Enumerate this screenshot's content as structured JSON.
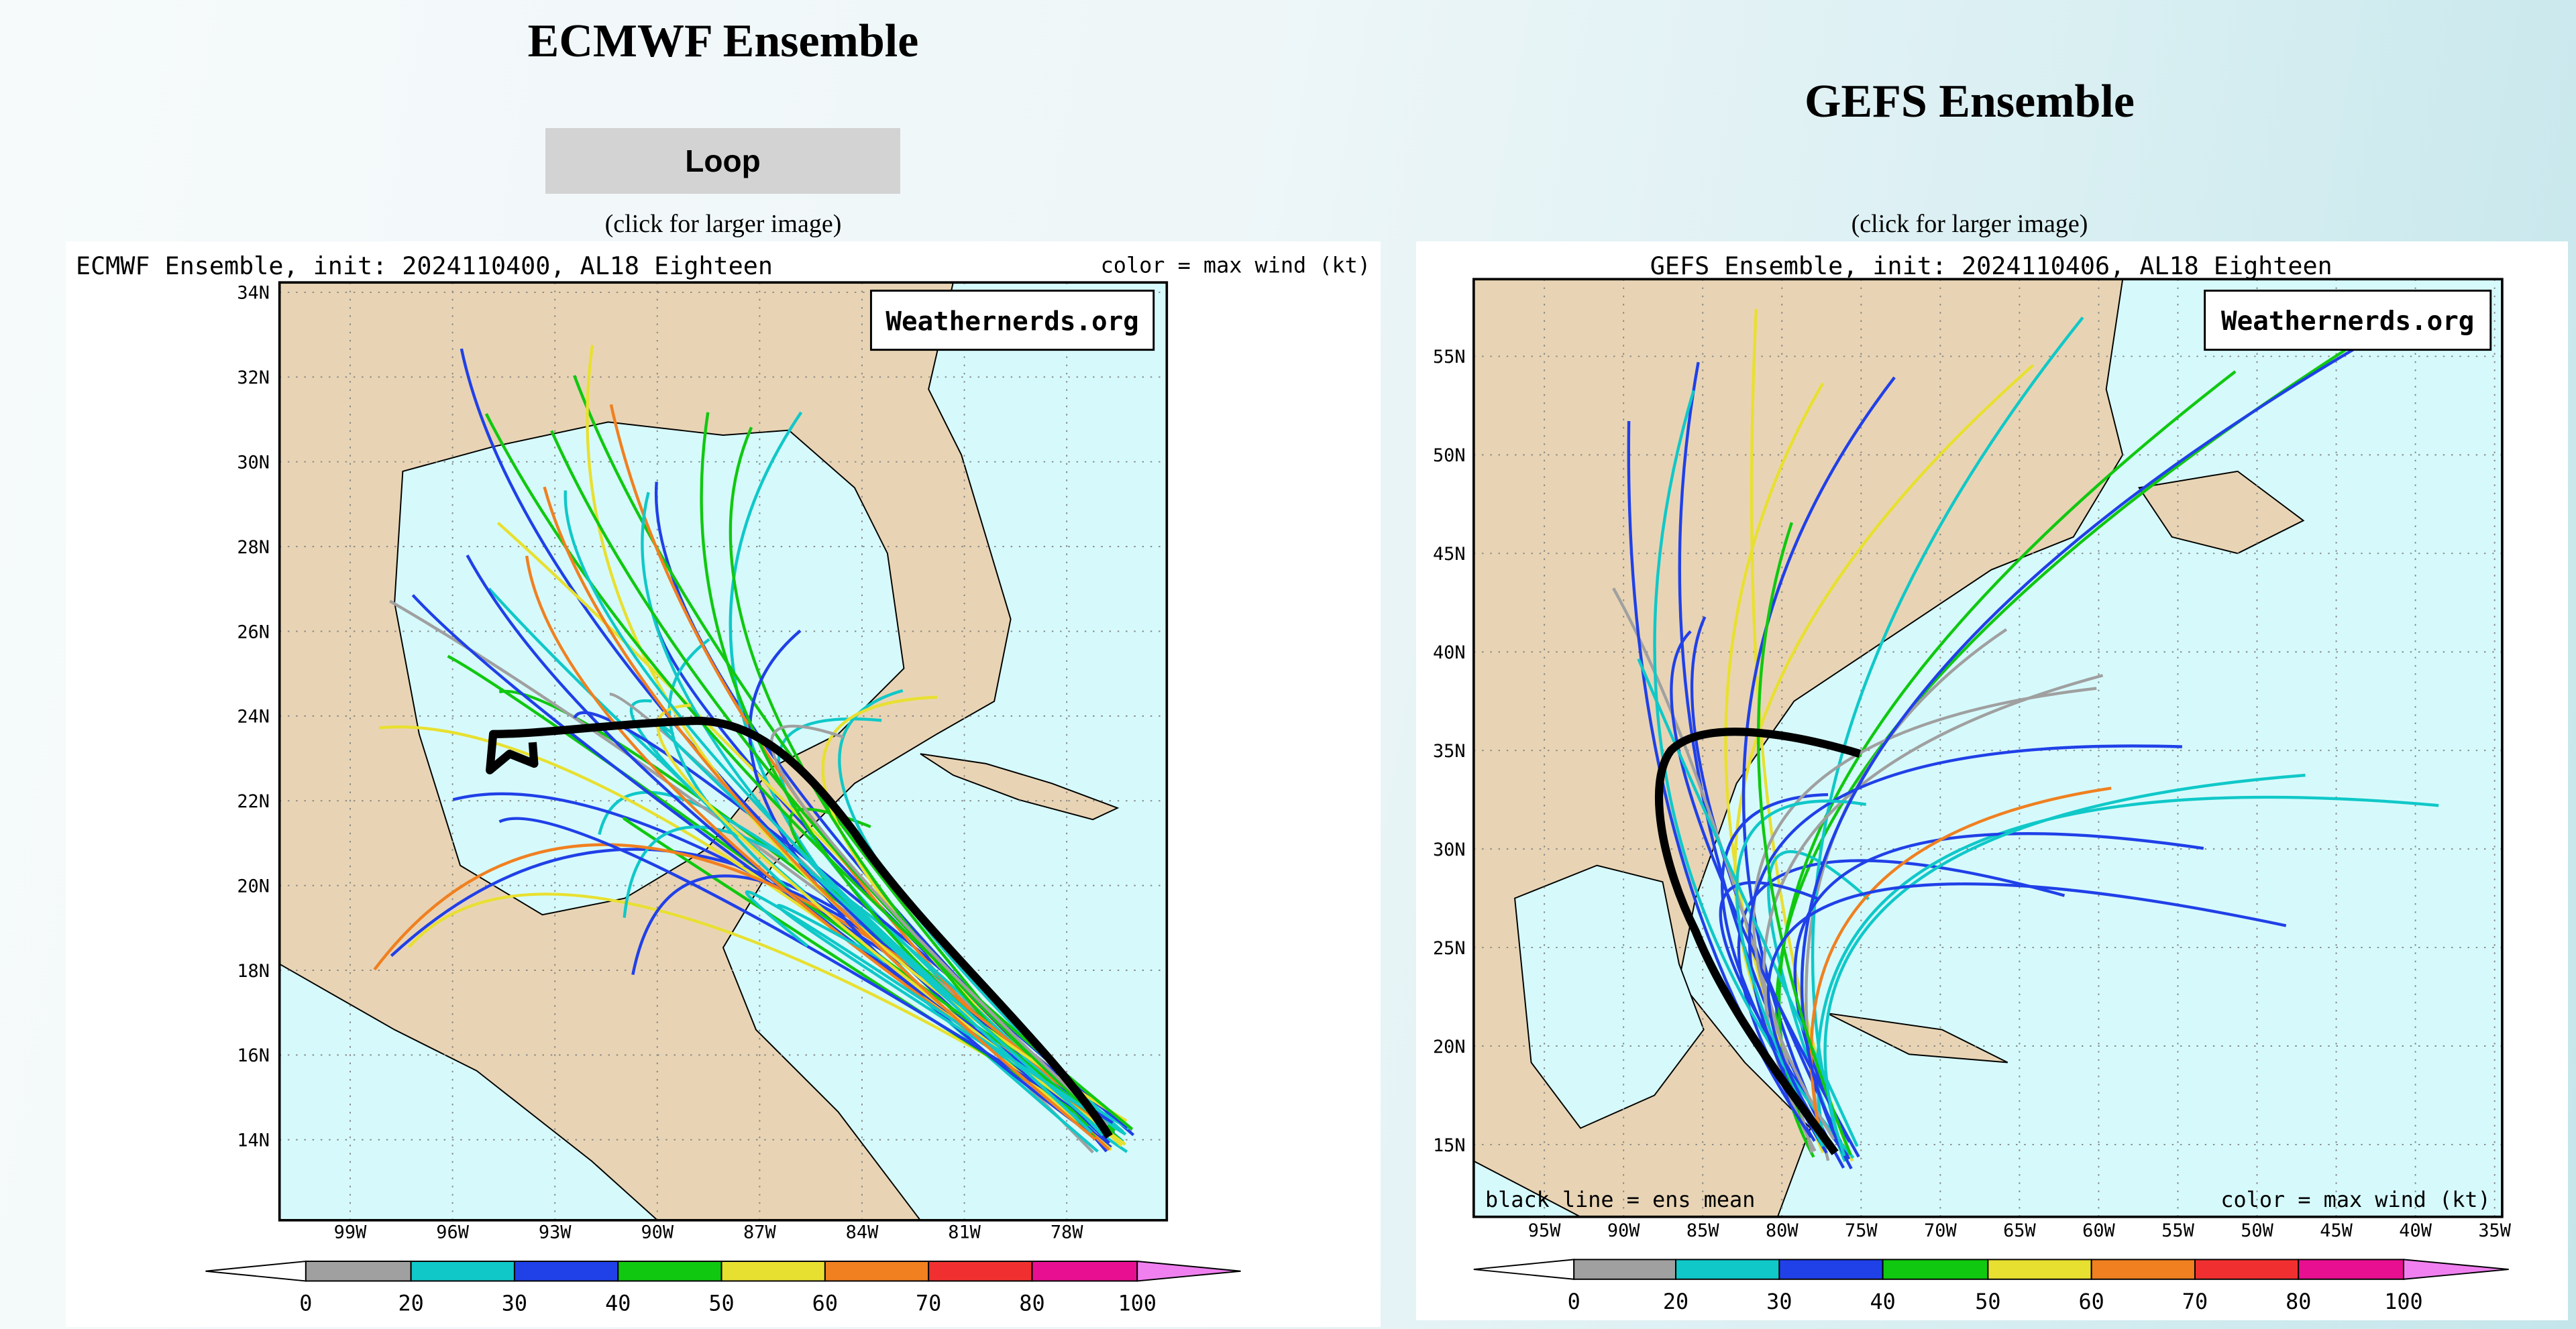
{
  "ecmwf": {
    "title": "ECMWF Ensemble",
    "button": "Loop",
    "caption": "(click for larger image)",
    "image": {
      "header": "ECMWF Ensemble, init: 2024110400, AL18 Eighteen",
      "legend_note": "color = max wind (kt)",
      "watermark": "Weathernerds.org",
      "lat_labels": [
        "34N",
        "32N",
        "30N",
        "28N",
        "26N",
        "24N",
        "22N",
        "20N",
        "18N",
        "16N",
        "14N"
      ],
      "lon_labels": [
        "99W",
        "96W",
        "93W",
        "90W",
        "87W",
        "84W",
        "81W",
        "78W"
      ],
      "colorbar": [
        0,
        20,
        30,
        40,
        50,
        60,
        70,
        80,
        100
      ]
    }
  },
  "gefs": {
    "title": "GEFS Ensemble",
    "caption": "(click for larger image)",
    "image": {
      "header": "GEFS Ensemble, init: 2024110406, AL18 Eighteen",
      "mean_note": "black line = ens mean",
      "legend_note": "color = max wind (kt)",
      "watermark": "Weathernerds.org",
      "lat_labels": [
        "55N",
        "50N",
        "45N",
        "40N",
        "35N",
        "30N",
        "25N",
        "20N",
        "15N"
      ],
      "lon_labels": [
        "95W",
        "90W",
        "85W",
        "80W",
        "75W",
        "70W",
        "65W",
        "60W",
        "55W",
        "50W",
        "45W",
        "40W",
        "35W"
      ],
      "colorbar": [
        0,
        20,
        30,
        40,
        50,
        60,
        70,
        80,
        100
      ]
    }
  }
}
